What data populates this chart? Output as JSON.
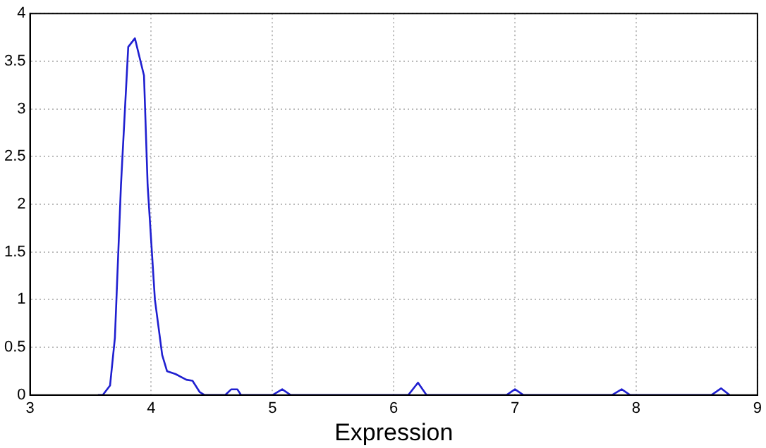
{
  "chart_data": {
    "type": "line",
    "xlabel": "Expression",
    "x": [
      3.56,
      3.6,
      3.66,
      3.7,
      3.75,
      3.81,
      3.865,
      3.94,
      3.97,
      4.03,
      4.09,
      4.13,
      4.2,
      4.29,
      4.34,
      4.4,
      4.44,
      4.61,
      4.66,
      4.71,
      4.74,
      5.0,
      5.08,
      5.15,
      6.12,
      6.2,
      6.27,
      6.93,
      7.0,
      7.07,
      7.8,
      7.88,
      7.95,
      8.62,
      8.7,
      8.77
    ],
    "series": [
      {
        "color": "#1f1fd0",
        "values": [
          0,
          0,
          0.1,
          0.6,
          2.2,
          3.65,
          3.74,
          3.35,
          2.2,
          1.0,
          0.42,
          0.25,
          0.22,
          0.16,
          0.15,
          0.03,
          0,
          0,
          0.06,
          0.06,
          0,
          0,
          0.06,
          0,
          0,
          0.13,
          0,
          0,
          0.06,
          0,
          0,
          0.06,
          0,
          0,
          0.07,
          0
        ]
      }
    ],
    "xlim": [
      3,
      9
    ],
    "xticks": [
      3,
      4,
      5,
      6,
      7,
      8,
      9
    ],
    "ylim": [
      0,
      4
    ],
    "yticks": [
      0,
      0.5,
      1,
      1.5,
      2,
      2.5,
      3,
      3.5,
      4
    ],
    "grid": true,
    "legend": false,
    "marker": "none",
    "line_style": "solid"
  }
}
